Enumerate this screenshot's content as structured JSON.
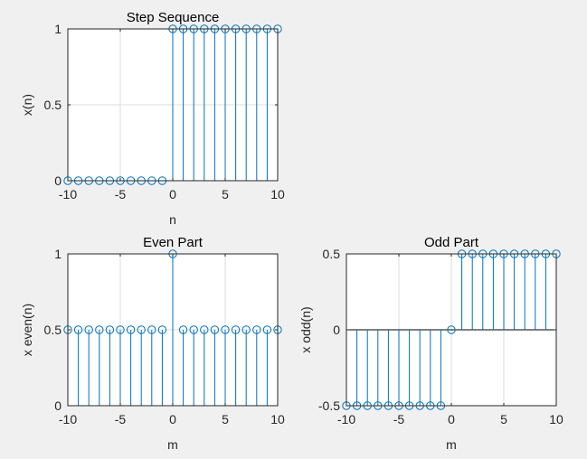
{
  "chart_data": [
    {
      "type": "stem",
      "title": "Step Sequence",
      "xlabel": "n",
      "ylabel": "x(n)",
      "xlim": [
        -10,
        10
      ],
      "ylim": [
        0,
        1
      ],
      "xticks": [
        "-10",
        "-5",
        "0",
        "5",
        "10"
      ],
      "yticks": [
        "0",
        "0.5",
        "1"
      ],
      "grid": true,
      "x": [
        -10,
        -9,
        -8,
        -7,
        -6,
        -5,
        -4,
        -3,
        -2,
        -1,
        0,
        1,
        2,
        3,
        4,
        5,
        6,
        7,
        8,
        9,
        10
      ],
      "y": [
        0,
        0,
        0,
        0,
        0,
        0,
        0,
        0,
        0,
        0,
        1,
        1,
        1,
        1,
        1,
        1,
        1,
        1,
        1,
        1,
        1
      ]
    },
    {
      "type": "stem",
      "title": "Even Part",
      "xlabel": "m",
      "ylabel": "x even(n)",
      "xlim": [
        -10,
        10
      ],
      "ylim": [
        0,
        1
      ],
      "xticks": [
        "-10",
        "-5",
        "0",
        "5",
        "10"
      ],
      "yticks": [
        "0",
        "0.5",
        "1"
      ],
      "grid": true,
      "x": [
        -10,
        -9,
        -8,
        -7,
        -6,
        -5,
        -4,
        -3,
        -2,
        -1,
        0,
        1,
        2,
        3,
        4,
        5,
        6,
        7,
        8,
        9,
        10
      ],
      "y": [
        0.5,
        0.5,
        0.5,
        0.5,
        0.5,
        0.5,
        0.5,
        0.5,
        0.5,
        0.5,
        1,
        0.5,
        0.5,
        0.5,
        0.5,
        0.5,
        0.5,
        0.5,
        0.5,
        0.5,
        0.5
      ]
    },
    {
      "type": "stem",
      "title": "Odd Part",
      "xlabel": "m",
      "ylabel": "x odd(n)",
      "xlim": [
        -10,
        10
      ],
      "ylim": [
        -0.5,
        0.5
      ],
      "xticks": [
        "-10",
        "-5",
        "0",
        "5",
        "10"
      ],
      "yticks": [
        "-0.5",
        "0",
        "0.5"
      ],
      "grid": true,
      "x": [
        -10,
        -9,
        -8,
        -7,
        -6,
        -5,
        -4,
        -3,
        -2,
        -1,
        0,
        1,
        2,
        3,
        4,
        5,
        6,
        7,
        8,
        9,
        10
      ],
      "y": [
        -0.5,
        -0.5,
        -0.5,
        -0.5,
        -0.5,
        -0.5,
        -0.5,
        -0.5,
        -0.5,
        -0.5,
        0,
        0.5,
        0.5,
        0.5,
        0.5,
        0.5,
        0.5,
        0.5,
        0.5,
        0.5,
        0.5
      ]
    }
  ],
  "colors": {
    "stem": "#0072bd",
    "grid": "#dedede",
    "axes": "#262626",
    "background": "#f0f0f0"
  }
}
